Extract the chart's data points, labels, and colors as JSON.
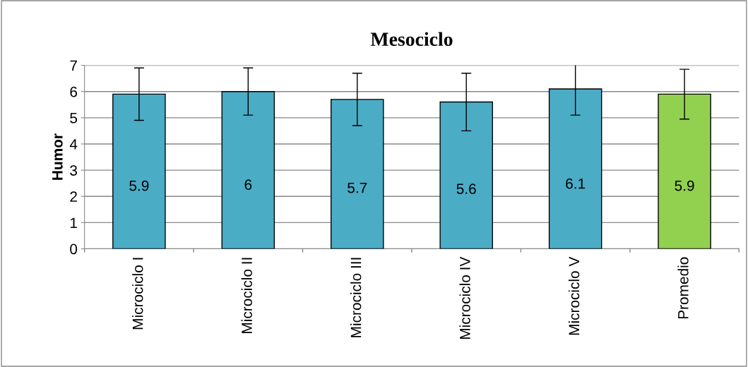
{
  "chart_data": {
    "type": "bar",
    "title": "Mesociclo",
    "ylabel": "Humor",
    "categories": [
      "Microciclo I",
      "Microciclo II",
      "Microciclo III",
      "Microciclo IV",
      "Microciclo V",
      "Promedio"
    ],
    "values": [
      5.9,
      6,
      5.7,
      5.6,
      6.1,
      5.9
    ],
    "colors": [
      "#4bacc6",
      "#4bacc6",
      "#4bacc6",
      "#4bacc6",
      "#4bacc6",
      "#92d050"
    ],
    "errors": [
      1,
      0.9,
      1,
      1.1,
      1,
      0.95
    ],
    "data_labels": true,
    "ylim": [
      0,
      7
    ],
    "yticks": [
      0,
      1,
      2,
      3,
      4,
      5,
      6,
      7
    ],
    "grid": "y",
    "legend": false
  }
}
